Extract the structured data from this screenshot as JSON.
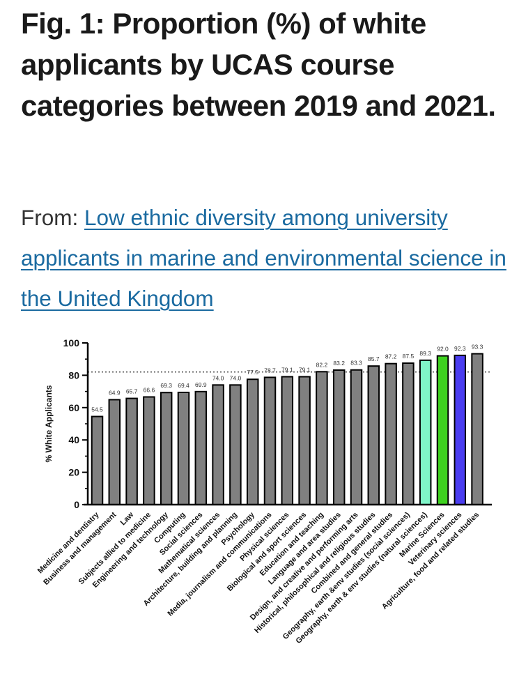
{
  "title": "Fig. 1: Proportion (%) of white applicants by UCAS course categories between 2019 and 2021.",
  "source": {
    "prefix": "From:",
    "link_text": "Low ethnic diversity among university applicants in marine and environmental science in the United Kingdom"
  },
  "chart_data": {
    "type": "bar",
    "ylabel": "% White Applicants",
    "xlabel": "",
    "ylim": [
      0,
      100
    ],
    "yticks": [
      0,
      20,
      40,
      60,
      80,
      100
    ],
    "reference_line": 82,
    "categories": [
      "Medicine and dentistry",
      "Business and management",
      "Law",
      "Subjects allied to medicine",
      "Engineering and technology",
      "Computing",
      "Social sciences",
      "Mathematical sciences",
      "Architecture, building and planning",
      "Psychology",
      "Media, journalism and communications",
      "Physical sciences",
      "Biological and sport sciences",
      "Education and teaching",
      "Language and area studies",
      "Design, and creative and performing arts",
      "Historical, philosophical and religious studies",
      "Combined and general studies",
      "Geography, earth &env studies (social sciences)",
      "Geography, earth & env studies (natural sciences)",
      "Marine Sciences",
      "Veterinary sciences",
      "Agriculture, food and related studies"
    ],
    "values": [
      54.5,
      64.9,
      65.7,
      66.6,
      69.3,
      69.4,
      69.9,
      74.0,
      74.0,
      77.5,
      78.7,
      79.1,
      79.1,
      82.2,
      83.2,
      83.3,
      85.7,
      87.2,
      87.5,
      89.3,
      92.0,
      92.3,
      93.3
    ],
    "value_labels": [
      "54.5",
      "64.9",
      "65.7",
      "66.6",
      "69.3",
      "69.4",
      "69.9",
      "74.0",
      "74.0",
      "77.5",
      "78.7",
      "79.1",
      "79.1",
      "82.2",
      "83.2",
      "83.3",
      "85.7",
      "87.2",
      "87.5",
      "89.3",
      "92.0",
      "92.3",
      "93.3"
    ],
    "colors": {
      "default": "#808080",
      "highlights": {
        "Geography, earth & env studies (natural sciences)": "#7ff5c8",
        "Marine Sciences": "#3ed11f",
        "Veterinary sciences": "#4a3df0"
      }
    }
  }
}
